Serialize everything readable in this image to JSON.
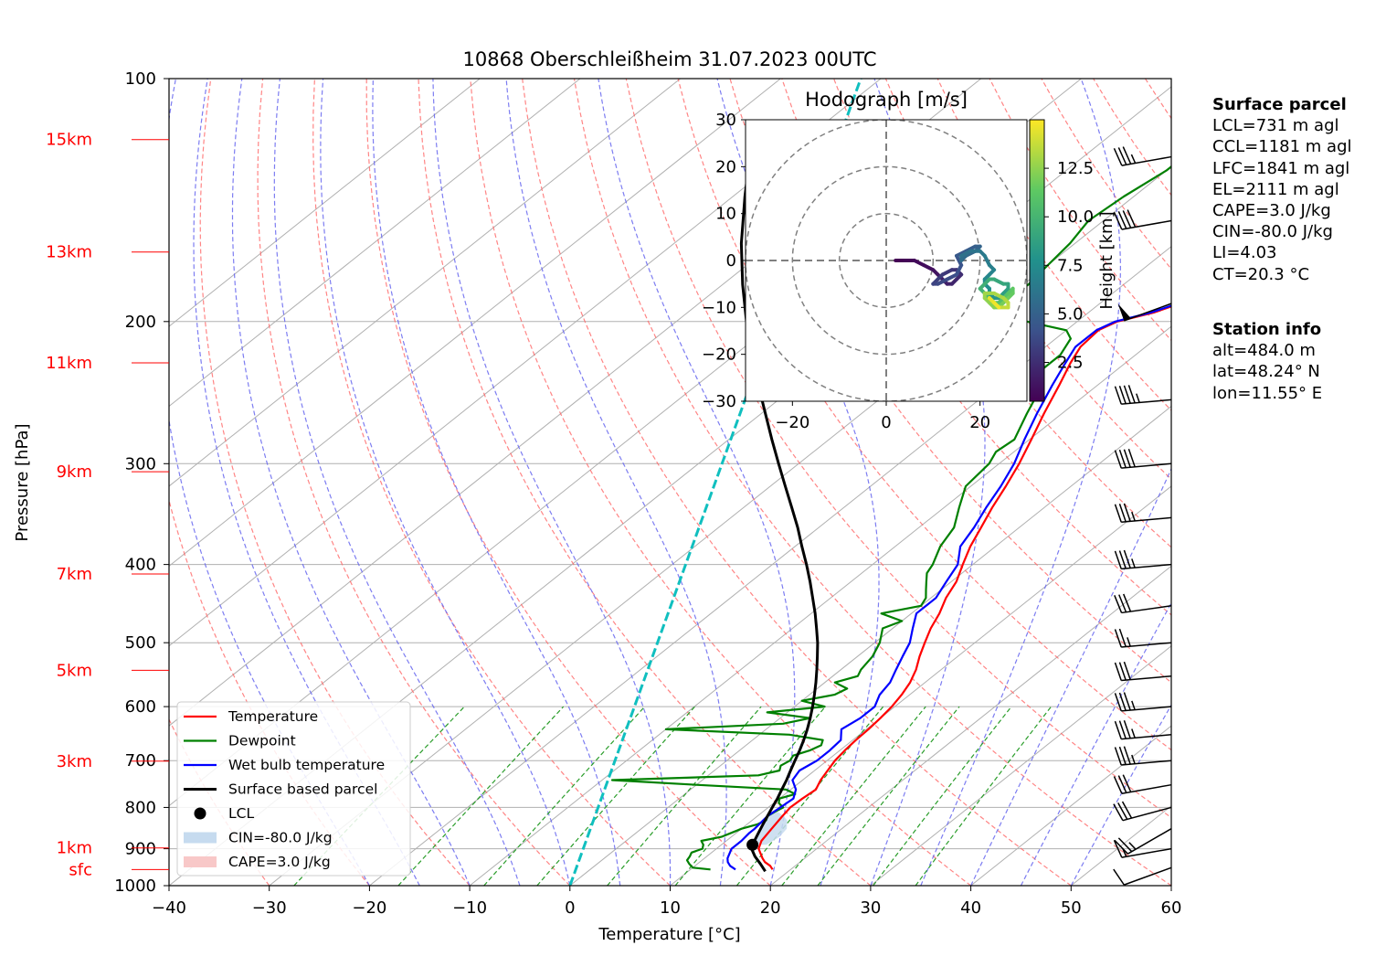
{
  "chart_data": {
    "type": "skew-t log-p",
    "title": "10868 Oberschleißheim 31.07.2023 00UTC",
    "xlabel": "Temperature [°C]",
    "ylabel": "Pressure [hPa]",
    "xlim": [
      -40,
      60
    ],
    "ylim": [
      1000,
      100
    ],
    "x_ticks": [
      "−40",
      "−30",
      "−20",
      "−10",
      "0",
      "10",
      "20",
      "30",
      "40",
      "50",
      "60"
    ],
    "p_ticks": [
      "100",
      "200",
      "300",
      "400",
      "500",
      "600",
      "700",
      "800",
      "900",
      "1000"
    ],
    "height_labels": [
      {
        "label": "sfc",
        "p": 955
      },
      {
        "label": "1km",
        "p": 898
      },
      {
        "label": "3km",
        "p": 701
      },
      {
        "label": "5km",
        "p": 541
      },
      {
        "label": "7km",
        "p": 411
      },
      {
        "label": "9km",
        "p": 307
      },
      {
        "label": "11km",
        "p": 225
      },
      {
        "label": "13km",
        "p": 164
      },
      {
        "label": "15km",
        "p": 119
      }
    ],
    "series": [
      {
        "name": "Temperature",
        "color": "#ff0000",
        "p": [
          955,
          945,
          935,
          925,
          900,
          880,
          850,
          820,
          800,
          780,
          760,
          740,
          720,
          700,
          680,
          660,
          640,
          620,
          600,
          580,
          560,
          540,
          520,
          500,
          480,
          460,
          440,
          420,
          400,
          380,
          360,
          340,
          320,
          300,
          280,
          260,
          240,
          225,
          215,
          205,
          200,
          195,
          190,
          185,
          180,
          175,
          170,
          165,
          160,
          155,
          150,
          145,
          140,
          135,
          130,
          125,
          120,
          118
        ],
        "t": [
          18.2,
          17.5,
          16.5,
          15.8,
          14.2,
          13.5,
          13.0,
          12.5,
          12.2,
          12.3,
          12.5,
          11.8,
          11.3,
          10.8,
          10.5,
          10.3,
          10.2,
          10.0,
          9.7,
          9.2,
          8.5,
          7.5,
          6.2,
          5.0,
          3.8,
          2.8,
          1.5,
          0.5,
          -1.0,
          -2.5,
          -3.8,
          -5.2,
          -6.5,
          -8.0,
          -9.8,
          -11.8,
          -13.8,
          -15.5,
          -16.5,
          -16.8,
          -16.0,
          -13.5,
          -12.0,
          -11.0,
          -9.5,
          -9.0,
          -8.5,
          -8.0,
          -7.5,
          -6.5,
          -5.5,
          -4.8,
          -4.0,
          -3.5,
          -2.5,
          -1.0,
          1.0,
          1.0
        ]
      },
      {
        "name": "Dewpoint",
        "color": "#008000",
        "p": [
          955,
          950,
          940,
          930,
          920,
          910,
          900,
          890,
          880,
          870,
          860,
          850,
          840,
          830,
          820,
          810,
          800,
          790,
          780,
          770,
          760,
          750,
          740,
          730,
          720,
          710,
          700,
          690,
          680,
          670,
          660,
          650,
          640,
          630,
          620,
          610,
          600,
          590,
          580,
          570,
          560,
          550,
          540,
          520,
          500,
          480,
          470,
          460,
          450,
          440,
          430,
          420,
          410,
          400,
          380,
          360,
          340,
          320,
          300,
          290,
          280,
          260,
          240,
          230,
          220,
          210,
          205,
          200,
          195,
          190,
          180,
          170,
          160,
          150,
          140,
          130,
          125,
          120
        ],
        "t": [
          12.0,
          10.0,
          9.2,
          8.5,
          8.3,
          8.0,
          8.6,
          8.2,
          7.5,
          9.0,
          9.5,
          10.0,
          11.0,
          11.4,
          11.0,
          11.2,
          11.5,
          10.5,
          10.0,
          11.0,
          9.5,
          0.0,
          -9.0,
          5.0,
          6.5,
          6.0,
          6.3,
          6.0,
          7.0,
          7.5,
          7.0,
          3.0,
          -10.0,
          1.0,
          3.0,
          -2.0,
          3.0,
          0.0,
          2.5,
          3.0,
          1.0,
          2.5,
          2.0,
          1.5,
          0.5,
          -1.0,
          0.0,
          -3.0,
          0.0,
          -0.5,
          -1.5,
          -2.5,
          -3.5,
          -4.0,
          -5.5,
          -6.5,
          -8.5,
          -10.5,
          -11.0,
          -11.8,
          -11.5,
          -13.5,
          -15.5,
          -17.5,
          -17.5,
          -18.5,
          -20.0,
          -25.0,
          -28.5,
          -30.0,
          -29.5,
          -30.0,
          -30.5,
          -31.5,
          -31.0,
          -30.0,
          -30.0,
          -30.0
        ]
      },
      {
        "name": "Wet bulb temperature",
        "color": "#0000ff",
        "p": [
          955,
          945,
          935,
          925,
          900,
          880,
          860,
          850,
          820,
          800,
          780,
          760,
          740,
          720,
          700,
          680,
          660,
          640,
          620,
          600,
          580,
          560,
          540,
          520,
          500,
          480,
          460,
          440,
          420,
          400,
          380,
          360,
          340,
          320,
          300,
          280,
          260,
          240,
          225,
          215,
          205,
          200,
          195,
          190,
          185,
          180,
          175,
          170,
          165,
          160,
          155,
          150,
          145,
          140,
          135,
          130,
          125,
          120,
          118
        ],
        "t": [
          14.5,
          13.5,
          12.8,
          12.3,
          11.5,
          11.5,
          11.3,
          11.3,
          11.0,
          11.2,
          11.4,
          10.5,
          9.0,
          8.5,
          9.0,
          9.0,
          8.8,
          7.5,
          8.0,
          8.0,
          7.0,
          6.5,
          5.5,
          4.5,
          3.5,
          2.0,
          0.5,
          0.5,
          -0.5,
          -1.5,
          -3.5,
          -4.5,
          -5.8,
          -7.0,
          -8.5,
          -10.5,
          -12.5,
          -14.5,
          -16.0,
          -17.0,
          -17.0,
          -16.2,
          -13.8,
          -12.2,
          -11.2,
          -9.8,
          -9.3,
          -8.8,
          -8.3,
          -7.8,
          -6.8,
          -5.8,
          -5.0,
          -4.2,
          -3.8,
          -2.8,
          -1.3,
          0.7,
          0.7
        ]
      },
      {
        "name": "Surface based parcel",
        "color": "#000000",
        "p": [
          960,
          940,
          920,
          900,
          890,
          880,
          860,
          840,
          820,
          800,
          780,
          760,
          740,
          720,
          700,
          680,
          660,
          640,
          620,
          600,
          580,
          560,
          540,
          520,
          500,
          480,
          460,
          440,
          420,
          400,
          380,
          360,
          340,
          320,
          300,
          280,
          260,
          240,
          220,
          200,
          180,
          160,
          140,
          125,
          118
        ],
        "t": [
          17.7,
          16.3,
          14.8,
          13.5,
          13.1,
          12.8,
          12.2,
          11.6,
          11.0,
          10.4,
          9.8,
          9.1,
          8.4,
          7.6,
          6.8,
          6.0,
          5.1,
          4.1,
          3.0,
          1.8,
          0.5,
          -0.9,
          -2.4,
          -4.0,
          -5.7,
          -7.6,
          -9.6,
          -11.8,
          -14.1,
          -16.6,
          -19.3,
          -22.1,
          -25.2,
          -28.5,
          -32.0,
          -35.7,
          -39.6,
          -43.8,
          -48.3,
          -53.0,
          -58.0,
          -63.3,
          -68.8,
          -73.3,
          -75.4
        ]
      }
    ],
    "lcl": {
      "p": 890,
      "t": 13.1
    },
    "cin_shading": {
      "p": [
        890,
        870,
        850,
        830,
        820,
        810
      ],
      "t_left": [
        13.1,
        12.5,
        11.9,
        11.3,
        11.0,
        10.8
      ],
      "t_right": [
        14.5,
        14.8,
        14.5,
        13.5,
        12.6,
        11.5
      ]
    },
    "ct_line_temp": 20.3,
    "legend": [
      {
        "label": "Temperature",
        "kind": "line",
        "color": "#ff0000"
      },
      {
        "label": "Dewpoint",
        "kind": "line",
        "color": "#008000"
      },
      {
        "label": "Wet bulb temperature",
        "kind": "line",
        "color": "#0000ff"
      },
      {
        "label": "Surface based parcel",
        "kind": "line",
        "color": "#000000"
      },
      {
        "label": "LCL",
        "kind": "dot",
        "color": "#000000"
      },
      {
        "label": "CIN=-80.0 J/kg",
        "kind": "patch",
        "color": "#c6dbef"
      },
      {
        "label": "CAPE=3.0 J/kg",
        "kind": "patch",
        "color": "#f8c8c8"
      }
    ],
    "legend_position": "lower-left",
    "wind_barbs": [
      {
        "p": 950,
        "speed_kt": 10,
        "dir": 250
      },
      {
        "p": 900,
        "speed_kt": 15,
        "dir": 260
      },
      {
        "p": 850,
        "speed_kt": 25,
        "dir": 240
      },
      {
        "p": 800,
        "speed_kt": 30,
        "dir": 255
      },
      {
        "p": 750,
        "speed_kt": 30,
        "dir": 260
      },
      {
        "p": 700,
        "speed_kt": 35,
        "dir": 265
      },
      {
        "p": 650,
        "speed_kt": 35,
        "dir": 265
      },
      {
        "p": 600,
        "speed_kt": 35,
        "dir": 265
      },
      {
        "p": 550,
        "speed_kt": 30,
        "dir": 265
      },
      {
        "p": 500,
        "speed_kt": 25,
        "dir": 265
      },
      {
        "p": 450,
        "speed_kt": 30,
        "dir": 262
      },
      {
        "p": 400,
        "speed_kt": 35,
        "dir": 265
      },
      {
        "p": 350,
        "speed_kt": 35,
        "dir": 265
      },
      {
        "p": 300,
        "speed_kt": 40,
        "dir": 265
      },
      {
        "p": 250,
        "speed_kt": 45,
        "dir": 265
      },
      {
        "p": 190,
        "speed_kt": 50,
        "dir": 250
      },
      {
        "p": 150,
        "speed_kt": 40,
        "dir": 260
      },
      {
        "p": 125,
        "speed_kt": 35,
        "dir": 260
      }
    ],
    "hodograph": {
      "title": "Hodograph [m/s]",
      "xlim": [
        -30,
        30
      ],
      "ylim": [
        -30,
        30
      ],
      "ticks": [
        "−20",
        "0",
        "20"
      ],
      "yticks": [
        "30",
        "20",
        "10",
        "0",
        "−10",
        "−20",
        "−30"
      ],
      "rings": [
        10,
        20,
        30
      ],
      "colorbar_label": "Height [km]",
      "colorbar_ticks": [
        "2.5",
        "5.0",
        "7.5",
        "10.0",
        "12.5"
      ],
      "colorbar_range": [
        0.5,
        15.0
      ],
      "u": [
        2,
        4,
        6,
        8,
        10,
        11,
        12,
        13,
        14,
        15,
        16,
        15,
        14,
        12,
        11,
        10,
        11,
        13,
        15,
        16,
        15,
        17,
        19,
        20,
        19,
        17,
        16,
        16,
        18,
        20,
        21,
        22,
        23,
        22,
        21,
        21,
        22,
        22,
        23,
        24,
        25,
        26,
        26,
        25,
        23,
        22,
        21,
        20,
        21,
        22,
        23,
        24,
        25,
        26,
        27,
        27,
        26,
        25,
        24,
        23,
        22,
        21,
        21,
        23,
        25,
        26,
        26,
        24,
        23,
        22,
        22,
        23,
        24
      ],
      "v": [
        0,
        0,
        0,
        -1,
        -2,
        -3,
        -4,
        -5,
        -5,
        -4,
        -3,
        -2,
        -2,
        -3,
        -4,
        -5,
        -5,
        -4,
        -3,
        -1,
        1,
        2,
        3,
        3,
        2,
        1,
        0,
        1,
        2,
        2,
        1,
        -1,
        -2,
        -3,
        -4,
        -5,
        -6,
        -7,
        -8,
        -8,
        -7,
        -6,
        -5,
        -5,
        -4,
        -4,
        -5,
        -6,
        -7,
        -8,
        -9,
        -9,
        -8,
        -7,
        -6,
        -7,
        -8,
        -9,
        -10,
        -10,
        -9,
        -8,
        -7,
        -7,
        -8,
        -9,
        -10,
        -10,
        -9,
        -8,
        -8,
        -9,
        -10
      ],
      "h": [
        0.5,
        0.7,
        0.9,
        1.1,
        1.3,
        1.5,
        1.7,
        1.9,
        2.1,
        2.3,
        2.5,
        2.7,
        2.9,
        3.1,
        3.3,
        3.5,
        3.7,
        3.9,
        4.1,
        4.3,
        4.5,
        4.7,
        4.9,
        5.1,
        5.3,
        5.5,
        5.7,
        5.9,
        6.1,
        6.3,
        6.5,
        6.7,
        6.9,
        7.1,
        7.3,
        7.5,
        7.7,
        7.9,
        8.1,
        8.3,
        8.5,
        8.7,
        8.9,
        9.1,
        9.3,
        9.5,
        9.7,
        9.9,
        10.1,
        10.3,
        10.5,
        10.7,
        10.9,
        11.1,
        11.3,
        11.5,
        11.7,
        11.9,
        12.1,
        12.3,
        12.5,
        12.7,
        12.9,
        13.1,
        13.3,
        13.5,
        13.7,
        13.9,
        14.1,
        14.3,
        14.5,
        14.7,
        14.9
      ]
    }
  },
  "surface_parcel": {
    "heading": "Surface parcel",
    "lines": [
      "LCL=731 m agl",
      "CCL=1181 m agl",
      "LFC=1841 m agl",
      "EL=2111 m agl",
      "CAPE=3.0 J/kg",
      "CIN=-80.0 J/kg",
      "LI=4.03",
      "CT=20.3 °C"
    ]
  },
  "station_info": {
    "heading": "Station info",
    "lines": [
      "alt=484.0 m",
      "lat=48.24° N",
      "lon=11.55° E"
    ]
  },
  "colors": {
    "isotherm": "#b0b0b0",
    "dry_adiabat": "#ff6666",
    "moist_adiabat": "#6666ee",
    "mixing_ratio": "#2a9d2a",
    "ct_line": "#10bfbf",
    "height_label": "#ff0000",
    "cin_fill": "#c6dbef"
  }
}
